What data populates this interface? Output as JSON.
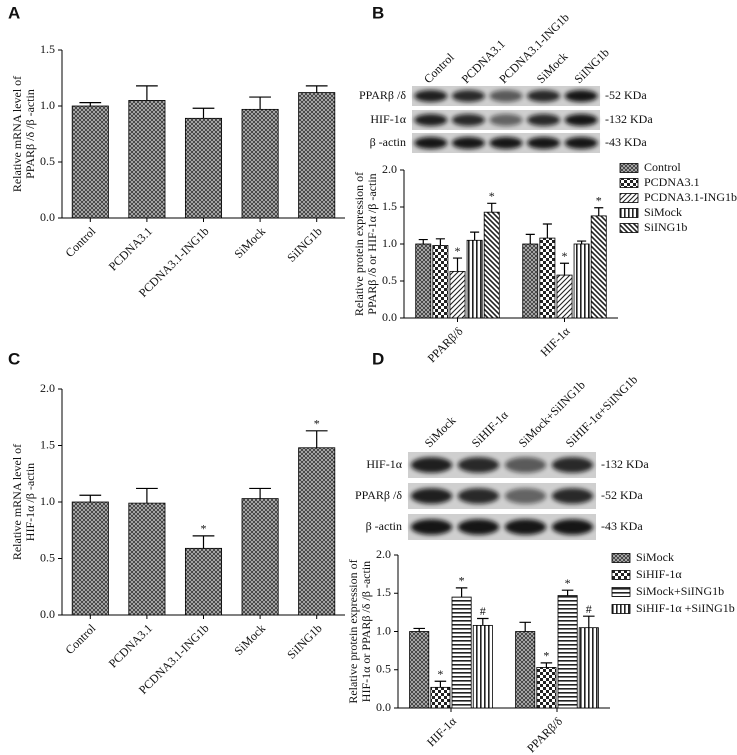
{
  "chart_data": [
    {
      "panel": "A",
      "type": "bar",
      "y_label": [
        "Relative mRNA level of",
        "PPARβ /δ /β -actin"
      ],
      "categories": [
        "Control",
        "PCDNA3.1",
        "PCDNA3.1-ING1b",
        "SiMock",
        "SiING1b"
      ],
      "values": [
        1.0,
        1.05,
        0.89,
        0.97,
        1.12
      ],
      "errors": [
        0.03,
        0.13,
        0.09,
        0.11,
        0.06
      ],
      "pattern": "grid",
      "ylim": [
        0,
        1.5
      ],
      "yticks": [
        {
          "value": 0,
          "label": "0.0"
        },
        0.5,
        {
          "value": 1,
          "label": "1.0"
        },
        1.5
      ]
    },
    {
      "panel": "B",
      "type": "bar",
      "blot": {
        "lanes": [
          "Control",
          "PCDNA3.1",
          "PCDNA3.1-ING1b",
          "SiMock",
          "SiING1b"
        ],
        "bands": [
          {
            "name": "PPARβ /δ",
            "size": "-52 KDa"
          },
          {
            "name": "HIF-1α",
            "size": "-132 KDa"
          },
          {
            "name": "β -actin",
            "size": "-43 KDa"
          }
        ]
      },
      "y_label": [
        "Relative protein expression of",
        "PPARβ /δ or HIF-1α /β -actin"
      ],
      "categories": [
        "PPARβ/δ",
        "HIF-1α"
      ],
      "series": [
        {
          "name": "Control",
          "pattern": "grid",
          "values": [
            1.0,
            1.0
          ],
          "errors": [
            0.06,
            0.13
          ]
        },
        {
          "name": "PCDNA3.1",
          "pattern": "checker",
          "values": [
            0.98,
            1.08
          ],
          "errors": [
            0.09,
            0.19
          ]
        },
        {
          "name": "PCDNA3.1-ING1b",
          "pattern": "diag",
          "values": [
            0.63,
            0.58
          ],
          "errors": [
            0.18,
            0.16
          ],
          "annotations": [
            "*",
            "*"
          ]
        },
        {
          "name": "SiMock",
          "pattern": "vlines",
          "values": [
            1.05,
            1.0
          ],
          "errors": [
            0.11,
            0.04
          ]
        },
        {
          "name": "SiING1b",
          "pattern": "bdiag",
          "values": [
            1.43,
            1.38
          ],
          "errors": [
            0.12,
            0.11
          ],
          "annotations": [
            "*",
            "*"
          ]
        }
      ],
      "ylim": [
        0,
        2
      ],
      "yticks": [
        {
          "value": 0,
          "label": "0.0"
        },
        0.5,
        {
          "value": 1,
          "label": "1.0"
        },
        1.5,
        {
          "value": 2,
          "label": "2.0"
        }
      ]
    },
    {
      "panel": "C",
      "type": "bar",
      "y_label": [
        "Relative mRNA level of",
        "HIF-1α /β -actin"
      ],
      "categories": [
        "Control",
        "PCDNA3.1",
        "PCDNA3.1-ING1b",
        "SiMock",
        "SiING1b"
      ],
      "values": [
        1.0,
        0.99,
        0.59,
        1.03,
        1.48
      ],
      "errors": [
        0.06,
        0.13,
        0.11,
        0.09,
        0.15
      ],
      "annotations": [
        null,
        null,
        "*",
        null,
        "*"
      ],
      "pattern": "grid",
      "ylim": [
        0,
        2
      ],
      "yticks": [
        {
          "value": 0,
          "label": "0.0"
        },
        0.5,
        {
          "value": 1,
          "label": "1.0"
        },
        1.5,
        {
          "value": 2,
          "label": "2.0"
        }
      ]
    },
    {
      "panel": "D",
      "type": "bar",
      "blot": {
        "lanes": [
          "SiMock",
          "SiHIF-1α",
          "SiMock+SiING1b",
          "SiHIF-1α+SiING1b"
        ],
        "bands": [
          {
            "name": "HIF-1α",
            "size": "-132 KDa"
          },
          {
            "name": "PPARβ /δ",
            "size": "-52 KDa"
          },
          {
            "name": "β -actin",
            "size": "-43 KDa"
          }
        ]
      },
      "y_label": [
        "Relative protein expression of",
        "HIF-1α  or PPARβ /δ /β -actin"
      ],
      "categories": [
        "HIF-1α",
        "PPARβ/δ"
      ],
      "series": [
        {
          "name": "SiMock",
          "pattern": "grid",
          "values": [
            1.0,
            1.0
          ],
          "errors": [
            0.04,
            0.12
          ]
        },
        {
          "name": "SiHIF-1α",
          "pattern": "checker",
          "values": [
            0.27,
            0.53
          ],
          "errors": [
            0.08,
            0.06
          ],
          "annotations": [
            "*",
            "*"
          ]
        },
        {
          "name": "SiMock+SiING1b",
          "pattern": "hlines",
          "values": [
            1.45,
            1.47
          ],
          "errors": [
            0.12,
            0.07
          ],
          "annotations": [
            "*",
            "*"
          ]
        },
        {
          "name": "SiHIF-1α +SiING1b",
          "pattern": "vlines",
          "values": [
            1.08,
            1.05
          ],
          "errors": [
            0.09,
            0.15
          ],
          "annotations": [
            "#",
            "#"
          ]
        }
      ],
      "ylim": [
        0,
        2
      ],
      "yticks": [
        {
          "value": 0,
          "label": "0.0"
        },
        0.5,
        {
          "value": 1,
          "label": "1.0"
        },
        1.5,
        {
          "value": 2,
          "label": "2.0"
        }
      ]
    }
  ]
}
